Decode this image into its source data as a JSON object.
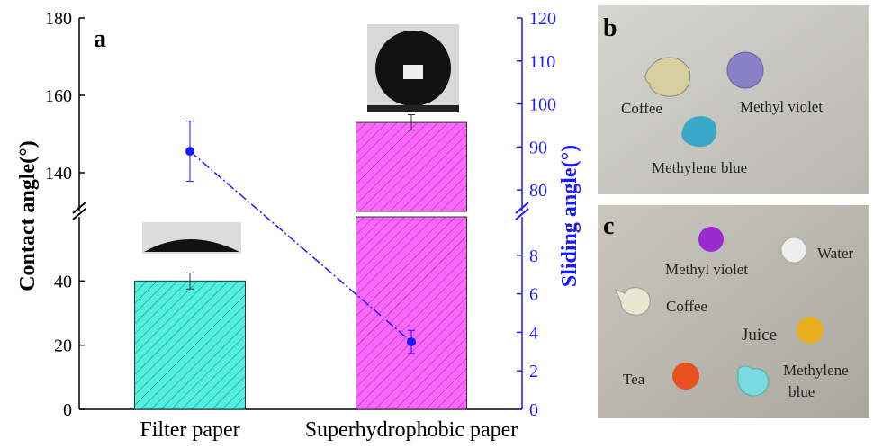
{
  "chart_data": {
    "type": "bar",
    "panel_label": "a",
    "categories": [
      "Filter paper",
      "Superhydrophobic paper"
    ],
    "ylabel": "Contact angle(°)",
    "y2label": "Sliding angle(°)",
    "ylim": [
      [
        0,
        60
      ],
      [
        130,
        180
      ]
    ],
    "yticks": [
      0,
      20,
      40,
      140,
      160,
      180
    ],
    "y2lim": [
      [
        0,
        10
      ],
      [
        75,
        120
      ]
    ],
    "y2ticks": [
      0,
      2,
      4,
      6,
      8,
      80,
      90,
      100,
      110,
      120
    ],
    "axis_color": "#1a1aff",
    "series": [
      {
        "type": "bar",
        "values": [
          40,
          153
        ],
        "errors": [
          2.5,
          2
        ],
        "colors": [
          "#4ff0e0",
          "#ff66ff"
        ]
      },
      {
        "type": "line",
        "axis": "y2",
        "values": [
          89,
          3.5
        ],
        "errors": [
          7,
          0.6
        ],
        "color": "#1a1aff"
      }
    ]
  },
  "photo_b": {
    "panel_label": "b",
    "labels": [
      "Coffee",
      "Methyl violet",
      "Methylene blue"
    ]
  },
  "photo_c": {
    "panel_label": "c",
    "labels": [
      "Methyl violet",
      "Water",
      "Coffee",
      "Juice",
      "Tea",
      "Methylene",
      "blue"
    ]
  }
}
